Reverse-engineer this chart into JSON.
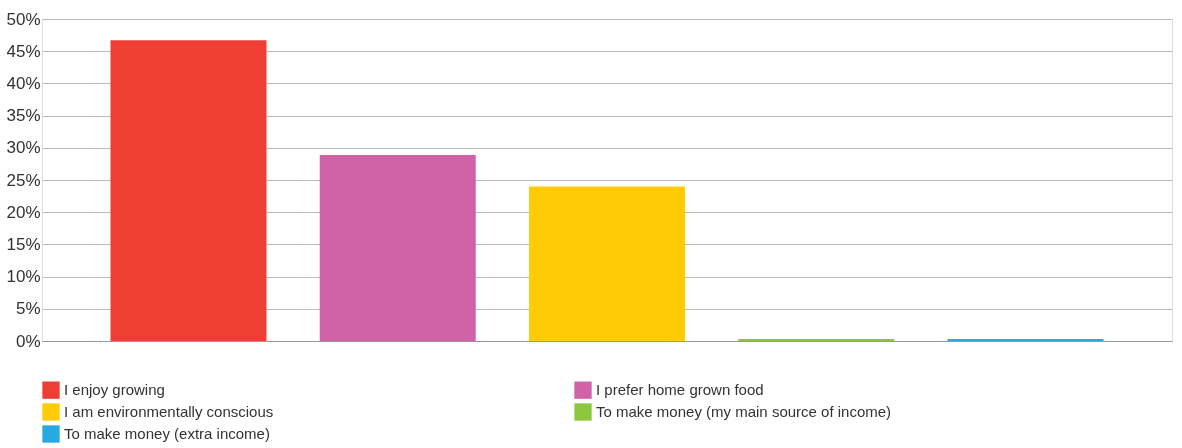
{
  "chart_data": {
    "type": "bar",
    "categories": [
      null,
      null,
      null,
      null,
      null
    ],
    "series": [
      {
        "name": "I enjoy growing",
        "color": "#ef3e33",
        "values": [
          46.7,
          null,
          null,
          null,
          null
        ]
      },
      {
        "name": "I prefer home grown food",
        "color": "#d062a8",
        "values": [
          null,
          28.9,
          null,
          null,
          null
        ]
      },
      {
        "name": "I am environmentally conscious",
        "color": "#ffcb05",
        "values": [
          null,
          null,
          24.0,
          null,
          null
        ]
      },
      {
        "name": "To make money (my main source of income)",
        "color": "#8dc63f",
        "values": [
          null,
          null,
          null,
          0.3,
          null
        ]
      },
      {
        "name": "To make money (extra income)",
        "color": "#27a9e1",
        "values": [
          null,
          null,
          null,
          null,
          0.3
        ]
      }
    ],
    "ylim": [
      0,
      50
    ],
    "yticks": [
      {
        "value": 0,
        "label": "0%"
      },
      {
        "value": 5,
        "label": "5%"
      },
      {
        "value": 10,
        "label": "10%"
      },
      {
        "value": 15,
        "label": "15%"
      },
      {
        "value": 20,
        "label": "20%"
      },
      {
        "value": 25,
        "label": "25%"
      },
      {
        "value": 30,
        "label": "30%"
      },
      {
        "value": 35,
        "label": "35%"
      },
      {
        "value": 40,
        "label": "40%"
      },
      {
        "value": 45,
        "label": "45%"
      },
      {
        "value": 50,
        "label": "50%"
      }
    ],
    "grid": "y",
    "legend": "bottom",
    "tick_labels": "y"
  }
}
